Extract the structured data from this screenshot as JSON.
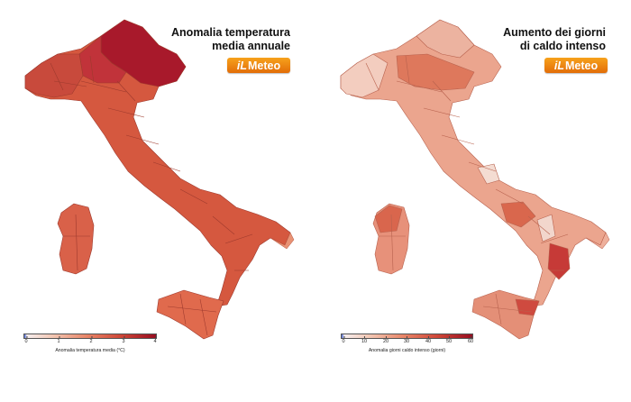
{
  "maps": [
    {
      "title_line1": "Anomalia temperatura",
      "title_line2": "media annuale",
      "logo_prefix": "iL",
      "logo_word": "Meteo",
      "colorbar": {
        "ticks": [
          "0",
          "1",
          "2",
          "3",
          "4"
        ],
        "label": "Anomalia temperatura media (°C)"
      }
    },
    {
      "title_line1": "Aumento dei giorni",
      "title_line2": "di caldo intenso",
      "logo_prefix": "iL",
      "logo_word": "Meteo",
      "colorbar": {
        "ticks": [
          "0",
          "10",
          "20",
          "30",
          "40",
          "50",
          "60"
        ],
        "label": "Anomalia giorni caldo intenso (giorni)"
      }
    }
  ],
  "colors": {
    "logo": "#f0870f",
    "scale_low": "#3f5fd0",
    "scale_mid": "#e88366",
    "scale_high": "#990d20"
  }
}
